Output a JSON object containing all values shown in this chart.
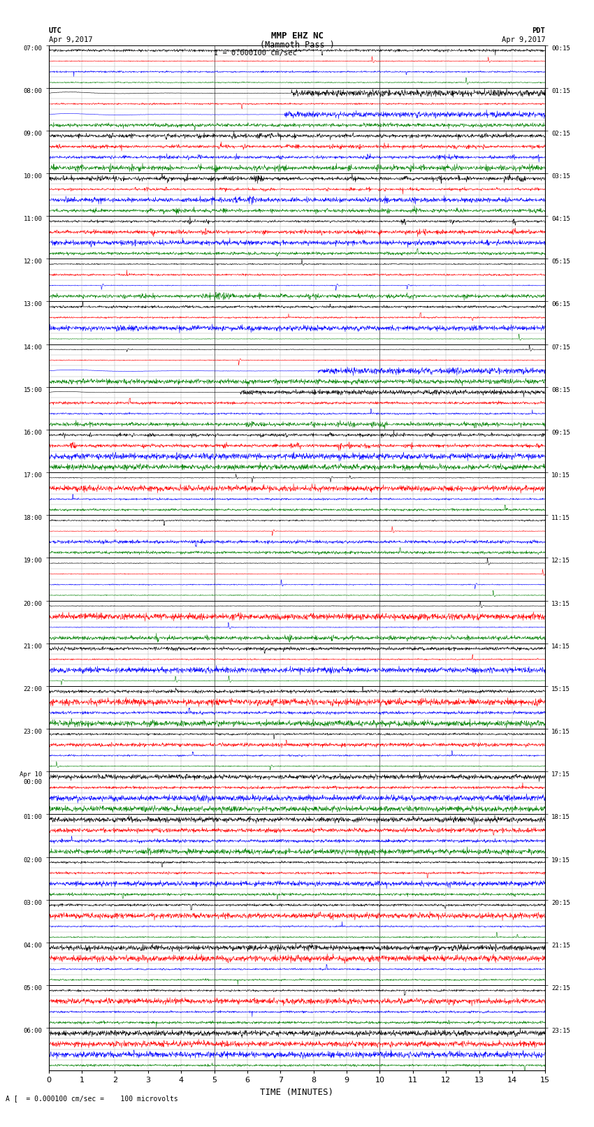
{
  "title_line1": "MMP EHZ NC",
  "title_line2": "(Mammoth Pass )",
  "scale_label": "I = 0.000100 cm/sec",
  "xlabel": "TIME (MINUTES)",
  "bottom_note": "A [  = 0.000100 cm/sec =    100 microvolts",
  "utc_times": [
    "07:00",
    "08:00",
    "09:00",
    "10:00",
    "11:00",
    "12:00",
    "13:00",
    "14:00",
    "15:00",
    "16:00",
    "17:00",
    "18:00",
    "19:00",
    "20:00",
    "21:00",
    "22:00",
    "23:00",
    "Apr 10\n00:00",
    "01:00",
    "02:00",
    "03:00",
    "04:00",
    "05:00",
    "06:00"
  ],
  "pdt_times": [
    "00:15",
    "01:15",
    "02:15",
    "03:15",
    "04:15",
    "05:15",
    "06:15",
    "07:15",
    "08:15",
    "09:15",
    "10:15",
    "11:15",
    "12:15",
    "13:15",
    "14:15",
    "15:15",
    "16:15",
    "17:15",
    "18:15",
    "19:15",
    "20:15",
    "21:15",
    "22:15",
    "23:15"
  ],
  "n_hours": 24,
  "n_minutes": 15,
  "bg_color": "#ffffff",
  "grid_major_color": "#000000",
  "grid_minor_color": "#aaaaaa"
}
